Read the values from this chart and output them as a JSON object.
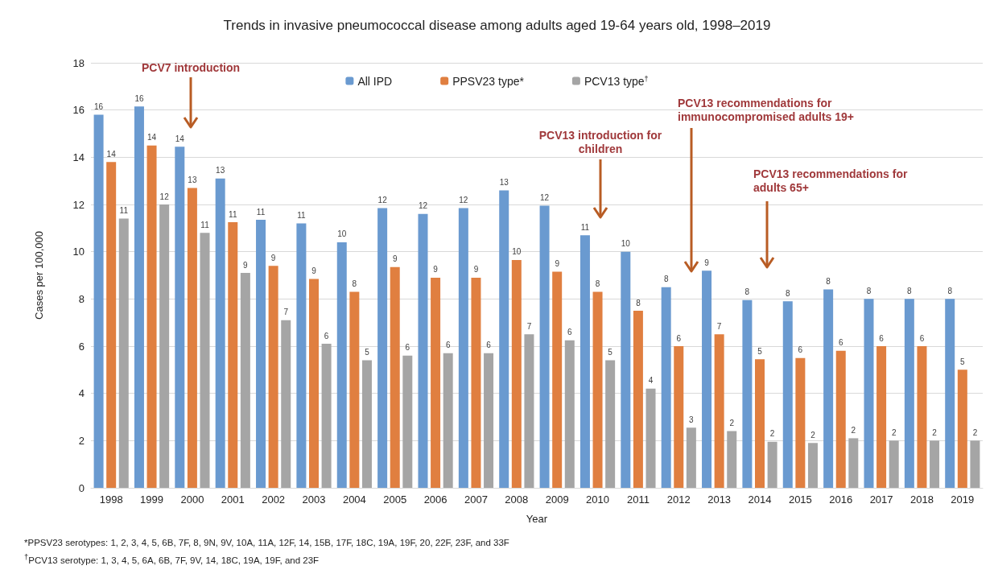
{
  "chart_data": {
    "type": "bar",
    "title": "Trends in invasive pneumococcal disease among adults aged 19-64 years old, 1998–2019",
    "xlabel": "Year",
    "ylabel": "Cases per 100,000",
    "categories": [
      "1998",
      "1999",
      "2000",
      "2001",
      "2002",
      "2003",
      "2004",
      "2005",
      "2006",
      "2007",
      "2008",
      "2009",
      "2010",
      "2011",
      "2012",
      "2013",
      "2014",
      "2015",
      "2016",
      "2017",
      "2018",
      "2019"
    ],
    "series": [
      {
        "name": "All IPD",
        "color": "#6a9ad0",
        "values": [
          15.8,
          16.15,
          14.45,
          13.1,
          11.35,
          11.2,
          10.4,
          11.85,
          11.6,
          11.85,
          12.6,
          11.95,
          10.7,
          10.0,
          8.5,
          9.2,
          7.95,
          7.9,
          8.4,
          8.0,
          8.0,
          8.0
        ],
        "value_labels": [
          "16",
          "16",
          "14",
          "13",
          "11",
          "11",
          "10",
          "12",
          "12",
          "12",
          "13",
          "12",
          "11",
          "10",
          "8",
          "9",
          "8",
          "8",
          "8",
          "8",
          "8",
          "8"
        ]
      },
      {
        "name": "PPSV23 type*",
        "color": "#e07f40",
        "values": [
          13.8,
          14.5,
          12.7,
          11.25,
          9.4,
          8.85,
          8.3,
          9.35,
          8.9,
          8.9,
          9.65,
          9.15,
          8.3,
          7.5,
          6.0,
          6.5,
          5.45,
          5.5,
          5.8,
          6.0,
          6.0,
          5.0
        ],
        "value_labels": [
          "14",
          "14",
          "13",
          "11",
          "9",
          "9",
          "8",
          "9",
          "9",
          "9",
          "10",
          "9",
          "8",
          "8",
          "6",
          "7",
          "5",
          "6",
          "6",
          "6",
          "6",
          "5"
        ]
      },
      {
        "name": "PCV13 type$^{†}$",
        "color": "#a5a5a5",
        "values": [
          11.4,
          12.0,
          10.8,
          9.1,
          7.1,
          6.1,
          5.4,
          5.6,
          5.7,
          5.7,
          6.5,
          6.25,
          5.4,
          4.2,
          2.55,
          2.4,
          1.95,
          1.9,
          2.1,
          2.0,
          2.0,
          2.0
        ],
        "value_labels": [
          "11",
          "12",
          "11",
          "9",
          "7",
          "6",
          "5",
          "6",
          "6",
          "6",
          "7",
          "6",
          "5",
          "4",
          "3",
          "2",
          "2",
          "2",
          "2",
          "2",
          "2",
          "2"
        ]
      }
    ],
    "ylim": [
      0,
      18
    ],
    "yticks": [
      0,
      2,
      4,
      6,
      8,
      10,
      12,
      14,
      16,
      18
    ],
    "grid": "y",
    "legend": "top",
    "annotations": [
      "PCV7 introduction",
      "PCV13 introduction for children",
      "PCV13 recommendations for immunocompromised adults 19+",
      "PCV13 recommendations for adults 65+",
      "*PPSV23 serotypes: 1, 2, 3, 4, 5, 6B, 7F, 8, 9N, 9V, 10A, 11A, 12F, 14, 15B, 17F, 18C, 19A, 19F, 20, 22F, 23F, and 33F",
      "$^{†}$PCV13 serotype: 1, 3, 4, 5, 6A, 6B, 7F, 9V, 14, 18C, 19A, 19F, and 23F"
    ]
  }
}
